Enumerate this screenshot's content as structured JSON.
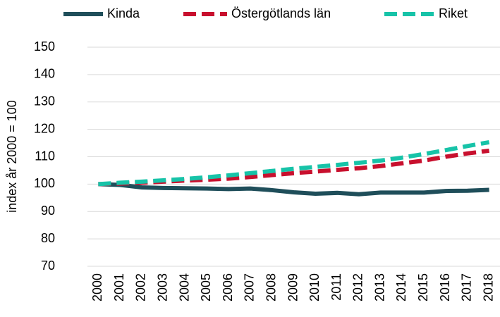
{
  "chart_data": {
    "type": "line",
    "y_label": "index år 2000 = 100",
    "categories": [
      "2000",
      "2001",
      "2002",
      "2003",
      "2004",
      "2005",
      "2006",
      "2007",
      "2008",
      "2009",
      "2010",
      "2011",
      "2012",
      "2013",
      "2014",
      "2015",
      "2016",
      "2017",
      "2018"
    ],
    "series": [
      {
        "name": "Kinda",
        "color": "#1f4e5a",
        "dash": "solid",
        "values": [
          100,
          99.7,
          98.8,
          98.6,
          98.5,
          98.4,
          98.2,
          98.4,
          97.8,
          97,
          96.5,
          96.8,
          96.3,
          96.9,
          96.9,
          96.9,
          97.5,
          97.6,
          97.9
        ]
      },
      {
        "name": "Östergötlands län",
        "color": "#c8102e",
        "dash": "dashed",
        "values": [
          100,
          100.2,
          100.5,
          100.9,
          101.3,
          101.6,
          102,
          102.6,
          103.3,
          104,
          104.6,
          105.2,
          105.8,
          106.6,
          107.6,
          108.6,
          110,
          111.2,
          112.2
        ]
      },
      {
        "name": "Riket",
        "color": "#17c3a8",
        "dash": "dashed",
        "values": [
          100,
          100.5,
          100.9,
          101.4,
          101.9,
          102.5,
          103.2,
          104,
          104.8,
          105.6,
          106.3,
          107,
          107.8,
          108.6,
          109.7,
          111,
          112.4,
          113.9,
          115.3
        ]
      }
    ],
    "ylim": [
      70,
      150
    ],
    "yticks": [
      70,
      80,
      90,
      100,
      110,
      120,
      130,
      140,
      150
    ],
    "grid": true,
    "legend": "top"
  }
}
